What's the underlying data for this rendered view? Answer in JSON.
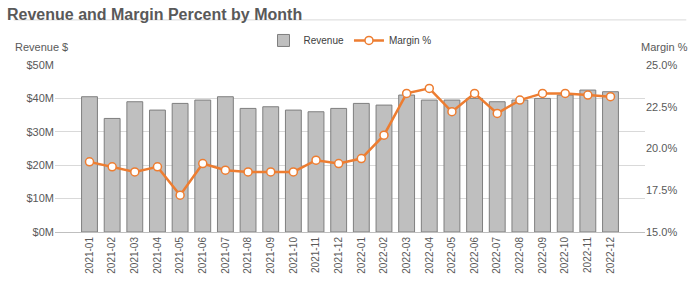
{
  "chart_data": {
    "type": "bar",
    "title": "Revenue and Margin Percent by Month",
    "y_label": "Revenue $",
    "y2_label": "Margin %",
    "categories": [
      "2021-01",
      "2021-02",
      "2021-03",
      "2021-04",
      "2021-05",
      "2021-06",
      "2021-07",
      "2021-08",
      "2021-09",
      "2021-10",
      "2021-11",
      "2021-12",
      "2022-01",
      "2022-02",
      "2022-03",
      "2022-04",
      "2022-05",
      "2022-06",
      "2022-07",
      "2022-08",
      "2022-09",
      "2022-10",
      "2022-11",
      "2022-12"
    ],
    "series": [
      {
        "name": "Revenue",
        "type": "bar",
        "color": "#bfbfbf",
        "values": [
          40.5,
          34,
          39,
          36.5,
          38.5,
          39.5,
          40.5,
          37,
          37.5,
          36.5,
          36,
          37,
          38.5,
          38,
          41,
          39.5,
          39.5,
          40,
          39,
          39.5,
          40,
          41,
          42.5,
          42
        ]
      },
      {
        "name": "Margin %",
        "type": "line",
        "axis": "y2",
        "color": "#ed7d31",
        "marker": "circle",
        "values": [
          19.2,
          18.9,
          18.6,
          18.9,
          17.2,
          19.1,
          18.7,
          18.6,
          18.6,
          18.6,
          19.3,
          19.1,
          19.4,
          20.8,
          23.3,
          23.6,
          22.2,
          23.3,
          22.1,
          22.9,
          23.3,
          23.3,
          23.2,
          23.1
        ]
      }
    ],
    "ylim": [
      0,
      50
    ],
    "yticks": [
      {
        "value": 0,
        "label": "$0M"
      },
      {
        "value": 10,
        "label": "$10M"
      },
      {
        "value": 20,
        "label": "$20M"
      },
      {
        "value": 30,
        "label": "$30M"
      },
      {
        "value": 40,
        "label": "$40M"
      },
      {
        "value": 50,
        "label": "$50M"
      }
    ],
    "y2lim": [
      15,
      25
    ],
    "y2ticks": [
      {
        "value": 15,
        "label": "15.0%"
      },
      {
        "value": 17.5,
        "label": "17.5%"
      },
      {
        "value": 20,
        "label": "20.0%"
      },
      {
        "value": 22.5,
        "label": "22.5%"
      },
      {
        "value": 25,
        "label": "25.0%"
      }
    ],
    "grid": true,
    "legend": "top"
  }
}
